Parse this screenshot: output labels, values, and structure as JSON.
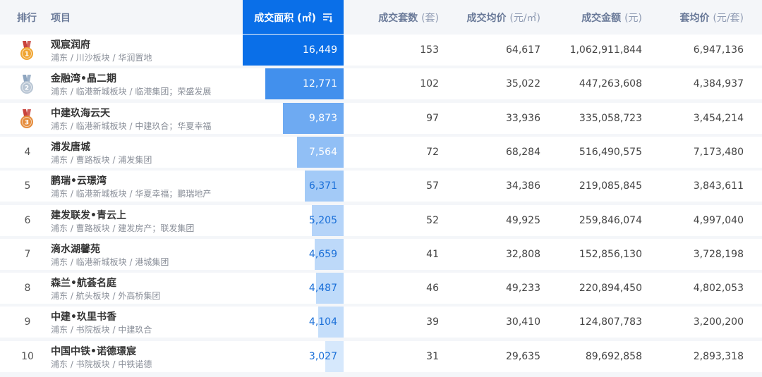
{
  "header": {
    "rank": "排行",
    "project": "项目",
    "area": "成交面积",
    "area_unit": "(㎡)",
    "units": "成交套数",
    "units_unit": "(套)",
    "avg_price": "成交均价",
    "avg_price_unit": "(元/㎡)",
    "amount": "成交金额",
    "amount_unit": "(元)",
    "avg_unit_price": "套均价",
    "avg_unit_price_unit": "(元/套)"
  },
  "colors": {
    "accent": "#0a6fe8",
    "medal_gold": "#f0a532",
    "medal_silver": "#b9c6d4",
    "medal_bronze": "#e58c3c"
  },
  "rows": [
    {
      "rank": "1",
      "medal": "gold",
      "name": "观宸润府",
      "location": "浦东 / 川沙板块 / 华润置地",
      "area": "16,449",
      "area_value": 16449,
      "units": "153",
      "avg_price": "64,617",
      "amount": "1,062,911,844",
      "avg_unit_price": "6,947,136"
    },
    {
      "rank": "2",
      "medal": "silver",
      "name": "金融湾•晶二期",
      "location": "浦东 / 临港新城板块 / 临港集团；荣盛发展",
      "area": "12,771",
      "area_value": 12771,
      "units": "102",
      "avg_price": "35,022",
      "amount": "447,263,608",
      "avg_unit_price": "4,384,937"
    },
    {
      "rank": "3",
      "medal": "bronze",
      "name": "中建玖海云天",
      "location": "浦东 / 临港新城板块 / 中建玖合；华夏幸福",
      "area": "9,873",
      "area_value": 9873,
      "units": "97",
      "avg_price": "33,936",
      "amount": "335,058,723",
      "avg_unit_price": "3,454,214"
    },
    {
      "rank": "4",
      "medal": "",
      "name": "浦发唐城",
      "location": "浦东 / 曹路板块 / 浦发集团",
      "area": "7,564",
      "area_value": 7564,
      "units": "72",
      "avg_price": "68,284",
      "amount": "516,490,575",
      "avg_unit_price": "7,173,480"
    },
    {
      "rank": "5",
      "medal": "",
      "name": "鹏瑞•云璟湾",
      "location": "浦东 / 临港新城板块 / 华夏幸福；鹏瑞地产",
      "area": "6,371",
      "area_value": 6371,
      "units": "57",
      "avg_price": "34,386",
      "amount": "219,085,845",
      "avg_unit_price": "3,843,611"
    },
    {
      "rank": "6",
      "medal": "",
      "name": "建发联发•青云上",
      "location": "浦东 / 曹路板块 / 建发房产；联发集团",
      "area": "5,205",
      "area_value": 5205,
      "units": "52",
      "avg_price": "49,925",
      "amount": "259,846,074",
      "avg_unit_price": "4,997,040"
    },
    {
      "rank": "7",
      "medal": "",
      "name": "滴水湖馨苑",
      "location": "浦东 / 临港新城板块 / 港城集团",
      "area": "4,659",
      "area_value": 4659,
      "units": "41",
      "avg_price": "32,808",
      "amount": "152,856,130",
      "avg_unit_price": "3,728,198"
    },
    {
      "rank": "8",
      "medal": "",
      "name": "森兰•航荟名庭",
      "location": "浦东 / 航头板块 / 外高桥集团",
      "area": "4,487",
      "area_value": 4487,
      "units": "46",
      "avg_price": "49,233",
      "amount": "220,894,450",
      "avg_unit_price": "4,802,053"
    },
    {
      "rank": "9",
      "medal": "",
      "name": "中建•玖里书香",
      "location": "浦东 / 书院板块 / 中建玖合",
      "area": "4,104",
      "area_value": 4104,
      "units": "39",
      "avg_price": "30,410",
      "amount": "124,807,783",
      "avg_unit_price": "3,200,200"
    },
    {
      "rank": "10",
      "medal": "",
      "name": "中国中铁•诺德璟宸",
      "location": "浦东 / 书院板块 / 中铁诺德",
      "area": "3,027",
      "area_value": 3027,
      "units": "31",
      "avg_price": "29,635",
      "amount": "89,692,858",
      "avg_unit_price": "2,893,318"
    }
  ]
}
